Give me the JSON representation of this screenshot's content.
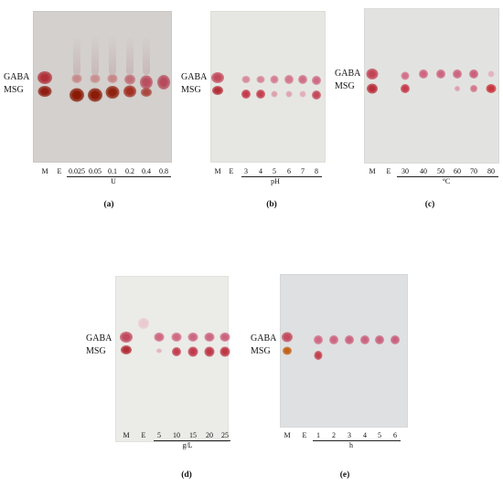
{
  "figure": {
    "analyte_labels": [
      "GABA",
      "MSG"
    ],
    "panels": [
      {
        "id": "a",
        "panel_label": "(a)",
        "unit": "U",
        "lanes": [
          "M",
          "E",
          "0.025",
          "0.05",
          "0.1",
          "0.2",
          "0.4",
          "0.8"
        ],
        "plate_color": "#d3d0cd"
      },
      {
        "id": "b",
        "panel_label": "(b)",
        "unit": "pH",
        "lanes": [
          "M",
          "E",
          "3",
          "4",
          "5",
          "6",
          "7",
          "8"
        ],
        "plate_color": "#e6e7e2"
      },
      {
        "id": "c",
        "panel_label": "(c)",
        "unit": "°C",
        "lanes": [
          "M",
          "E",
          "30",
          "40",
          "50",
          "60",
          "70",
          "80"
        ],
        "plate_color": "#e2e3e0"
      },
      {
        "id": "d",
        "panel_label": "(d)",
        "unit": "g/L",
        "lanes": [
          "M",
          "E",
          "5",
          "10",
          "15",
          "20",
          "25"
        ],
        "plate_color": "#ebebe8"
      },
      {
        "id": "e",
        "panel_label": "(e)",
        "unit": "h",
        "lanes": [
          "M",
          "E",
          "1",
          "2",
          "3",
          "4",
          "5",
          "6"
        ],
        "plate_color": "#dfe0e1"
      }
    ]
  }
}
